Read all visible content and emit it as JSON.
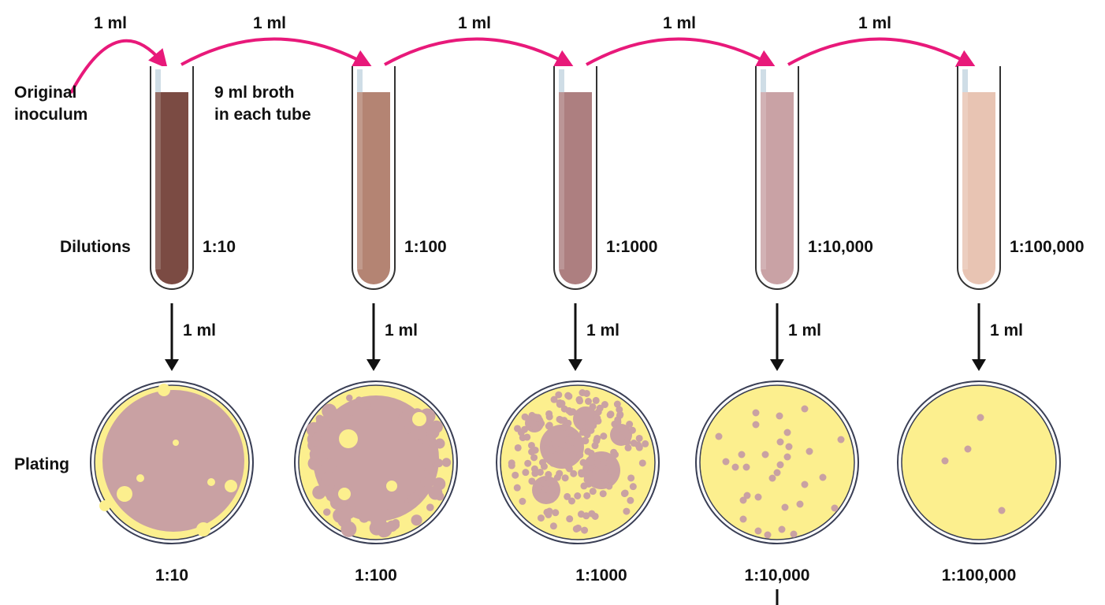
{
  "labels": {
    "original_inoculum": [
      "Original",
      "inoculum"
    ],
    "broth_note": [
      "9 ml broth",
      "in each tube"
    ],
    "dilutions": "Dilutions",
    "plating": "Plating",
    "transfer_volume": "1 ml"
  },
  "tubes": [
    {
      "dilution": "1:10",
      "color": "#7b4b43"
    },
    {
      "dilution": "1:100",
      "color": "#b48473"
    },
    {
      "dilution": "1:1000",
      "color": "#ad7f80"
    },
    {
      "dilution": "1:10,000",
      "color": "#c9a2a5"
    },
    {
      "dilution": "1:100,000",
      "color": "#e8c4b3"
    }
  ],
  "plates": [
    {
      "dilution": "1:10"
    },
    {
      "dilution": "1:100"
    },
    {
      "dilution": "1:1000"
    },
    {
      "dilution": "1:10,000"
    },
    {
      "dilution": "1:100,000"
    }
  ],
  "colors": {
    "transfer_arrow": "#e8197a",
    "agar": "#fcef8e",
    "colony": "#c9a1a3",
    "plate_rim": "#3a3f55"
  }
}
